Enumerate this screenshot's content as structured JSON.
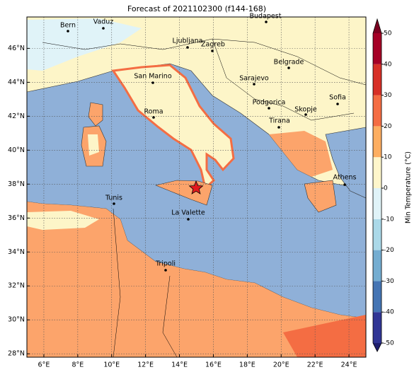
{
  "title": "Forecast of 2021102300 (f144-168)",
  "map": {
    "xlim": [
      5,
      25
    ],
    "ylim": [
      27.8,
      47.85
    ],
    "xticks": [
      {
        "value": 6,
        "label": "6°E"
      },
      {
        "value": 8,
        "label": "8°E"
      },
      {
        "value": 10,
        "label": "10°E"
      },
      {
        "value": 12,
        "label": "12°E"
      },
      {
        "value": 14,
        "label": "14°E"
      },
      {
        "value": 16,
        "label": "16°E"
      },
      {
        "value": 18,
        "label": "18°E"
      },
      {
        "value": 20,
        "label": "20°E"
      },
      {
        "value": 22,
        "label": "22°E"
      },
      {
        "value": 24,
        "label": "24°E"
      }
    ],
    "yticks": [
      {
        "value": 28,
        "label": "28°N"
      },
      {
        "value": 30,
        "label": "30°N"
      },
      {
        "value": 32,
        "label": "32°N"
      },
      {
        "value": 34,
        "label": "34°N"
      },
      {
        "value": 36,
        "label": "36°N"
      },
      {
        "value": 38,
        "label": "38°N"
      },
      {
        "value": 40,
        "label": "40°N"
      },
      {
        "value": 42,
        "label": "42°N"
      },
      {
        "value": 44,
        "label": "44°N"
      },
      {
        "value": 46,
        "label": "46°N"
      }
    ],
    "grid": true,
    "cities": [
      "Bern",
      "Vaduz",
      "Budapest",
      "Ljubljana",
      "Zagreb",
      "Belgrade",
      "San Marino",
      "Sarajevo",
      "Sofia",
      "Podgorica",
      "Skopje",
      "Roma",
      "Tirana",
      "Athens",
      "Tunis",
      "La Valette",
      "Tripoli"
    ]
  },
  "colorbar": {
    "label": "Min Temperature (°C)",
    "levels": [
      -50,
      -40,
      -30,
      -20,
      -10,
      0,
      10,
      20,
      30,
      40,
      50
    ],
    "colors": [
      "#313695",
      "#4575b4",
      "#74add1",
      "#abd9e9",
      "#e0f3f8",
      "#fef6cb",
      "#fdae61",
      "#f46d43",
      "#d73027",
      "#a50026"
    ],
    "extend_colors": [
      "#1f1f6e",
      "#7a0020"
    ],
    "ticks": [
      -50,
      -40,
      -30,
      -20,
      -10,
      0,
      10,
      20,
      30,
      40,
      50
    ]
  }
}
